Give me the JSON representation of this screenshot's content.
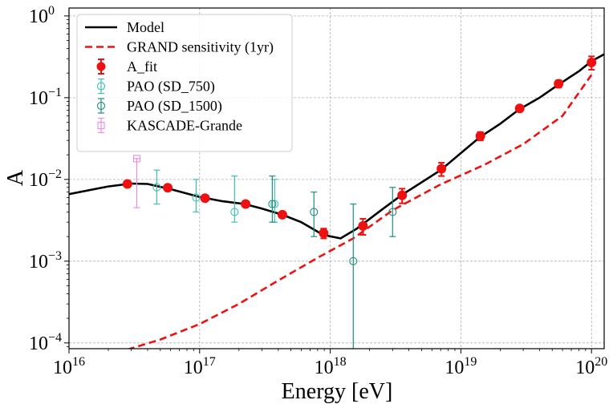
{
  "chart_data": {
    "type": "scatter",
    "xlabel": "Energy [eV]",
    "ylabel": "A",
    "xscale": "log",
    "yscale": "log",
    "xlim": [
      1e+16,
      1.25e+20
    ],
    "ylim": [
      8.5e-05,
      1.25
    ],
    "grid": true,
    "legend_position": "top-left",
    "x_ticks": [
      {
        "value": 1e+16,
        "base": "10",
        "exp": "16"
      },
      {
        "value": 1e+17,
        "base": "10",
        "exp": "17"
      },
      {
        "value": 1e+18,
        "base": "10",
        "exp": "18"
      },
      {
        "value": 1e+19,
        "base": "10",
        "exp": "19"
      },
      {
        "value": 1e+20,
        "base": "10",
        "exp": "20"
      }
    ],
    "y_ticks": [
      {
        "value": 0.0001,
        "base": "10",
        "exp": "−4"
      },
      {
        "value": 0.001,
        "base": "10",
        "exp": "−3"
      },
      {
        "value": 0.01,
        "base": "10",
        "exp": "−2"
      },
      {
        "value": 0.1,
        "base": "10",
        "exp": "−1"
      },
      {
        "value": 1,
        "base": "10",
        "exp": "0"
      }
    ],
    "series": [
      {
        "name": "Model",
        "kind": "line",
        "color": "#000000",
        "dash": "solid",
        "x": [
          1e+16,
          2e+16,
          3e+16,
          4e+16,
          6e+16,
          1e+17,
          1.5e+17,
          2.2e+17,
          3e+17,
          4.3e+17,
          6e+17,
          8.8e+17,
          1.2e+18,
          1.6e+18,
          2.5e+18,
          3.5e+18,
          5e+18,
          7e+18,
          1e+19,
          1.4e+19,
          2e+19,
          2.8e+19,
          4e+19,
          5.6e+19,
          8e+19,
          1e+20,
          1.25e+20
        ],
        "y": [
          0.0066,
          0.0082,
          0.0089,
          0.0088,
          0.0076,
          0.0061,
          0.0054,
          0.005,
          0.0044,
          0.0037,
          0.003,
          0.0021,
          0.0019,
          0.0025,
          0.0043,
          0.0064,
          0.0092,
          0.013,
          0.021,
          0.033,
          0.048,
          0.072,
          0.1,
          0.145,
          0.21,
          0.28,
          0.34
        ]
      },
      {
        "name": "GRAND sensitivity (1yr)",
        "kind": "line",
        "color": "#ee1111",
        "dash": "dashed",
        "x": [
          2.8e+16,
          5e+16,
          1e+17,
          2e+17,
          4e+17,
          8e+17,
          1.5e+18,
          3e+18,
          7e+18,
          1.5e+19,
          3e+19,
          6e+19,
          1e+20
        ],
        "y": [
          8.3e-05,
          0.00011,
          0.00017,
          0.0003,
          0.00058,
          0.0011,
          0.0019,
          0.0042,
          0.0087,
          0.015,
          0.027,
          0.06,
          0.19
        ]
      },
      {
        "name": "A_fit",
        "kind": "points",
        "marker": "filled-circle",
        "color": "#ee1111",
        "x": [
          2.8e+16,
          5.7e+16,
          1.1e+17,
          2.25e+17,
          4.3e+17,
          8.9e+17,
          1.78e+18,
          3.55e+18,
          7.1e+18,
          1.41e+19,
          2.82e+19,
          5.6e+19,
          1e+20
        ],
        "y": [
          0.0088,
          0.0079,
          0.0059,
          0.005,
          0.0037,
          0.0022,
          0.0027,
          0.0064,
          0.0135,
          0.034,
          0.074,
          0.148,
          0.27
        ],
        "err_low": [
          0.0003,
          0.0003,
          0.0003,
          0.0002,
          0.0002,
          0.0003,
          0.0006,
          0.0013,
          0.0025,
          0.004,
          0.006,
          0.015,
          0.05
        ],
        "err_high": [
          0.0003,
          0.0003,
          0.0003,
          0.0002,
          0.0002,
          0.0003,
          0.0006,
          0.0013,
          0.0025,
          0.004,
          0.006,
          0.015,
          0.05
        ]
      },
      {
        "name": "PAO (SD_750)",
        "kind": "points",
        "marker": "open-circle",
        "color": "#3bbfb4",
        "x": [
          4.7e+16,
          9.4e+16,
          1.85e+17,
          3.75e+17
        ],
        "y": [
          0.008,
          0.006,
          0.004,
          0.005
        ],
        "err_low": [
          0.003,
          0.002,
          0.001,
          0.002
        ],
        "err_high": [
          0.005,
          0.004,
          0.007,
          0.005
        ]
      },
      {
        "name": "PAO (SD_1500)",
        "kind": "points",
        "marker": "open-circle",
        "color": "#1f8d80",
        "x": [
          3.6e+17,
          7.5e+17,
          1.5e+18,
          3e+18
        ],
        "y": [
          0.005,
          0.004,
          0.001,
          0.004
        ],
        "err_low": [
          0.002,
          0.002,
          0.00095,
          0.002
        ],
        "err_high": [
          0.006,
          0.003,
          0.004,
          0.004
        ]
      },
      {
        "name": "KASCADE-Grande",
        "kind": "points",
        "marker": "open-square",
        "color": "#ea8fe0",
        "x": [
          3.3e+16
        ],
        "y": [
          0.018
        ],
        "err_low": [
          0.0135
        ],
        "err_high": [
          0.0
        ]
      }
    ]
  }
}
